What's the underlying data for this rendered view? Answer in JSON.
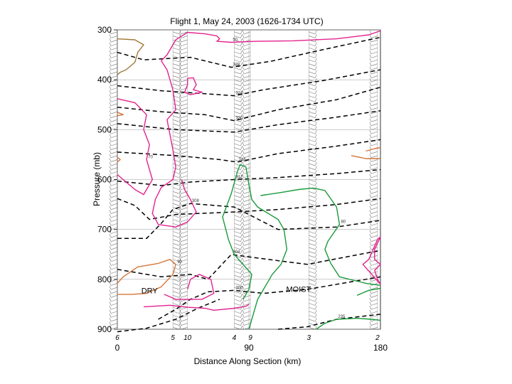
{
  "chart_data": {
    "type": "line",
    "title": "Flight 1, May 24, 2003 (1626-1734 UTC)",
    "xlabel": "Distance Along Section (km)",
    "ylabel": "Pressure (mb)",
    "xlim": [
      0,
      180
    ],
    "ylim": [
      300,
      900
    ],
    "x_ticks": [
      "0",
      "90",
      "180"
    ],
    "y_ticks": [
      "300",
      "400",
      "500",
      "600",
      "700",
      "800",
      "900"
    ],
    "sounding_numbers": [
      {
        "label": "6",
        "x": 0
      },
      {
        "label": "5",
        "x": 38
      },
      {
        "label": "10",
        "x": 48
      },
      {
        "label": "4",
        "x": 80
      },
      {
        "label": "9",
        "x": 91
      },
      {
        "label": "3",
        "x": 131
      },
      {
        "label": "2",
        "x": 178
      }
    ],
    "annotations": [
      {
        "text": "DRY",
        "x": 22,
        "y": 828
      },
      {
        "text": "MOIST",
        "x": 124,
        "y": 825
      }
    ],
    "colors": {
      "theta": "#000000",
      "rh_high": "#e2238e",
      "rh_mid": "#1a9a3a",
      "rh_low": "#d5763a",
      "rh_low_alt": "#a07838",
      "grid": "#999999",
      "barb": "#777777"
    },
    "series": [
      {
        "kind": "theta",
        "label": "328",
        "points": [
          [
            0,
            345
          ],
          [
            18,
            360
          ],
          [
            50,
            355
          ],
          [
            78,
            375
          ],
          [
            105,
            363
          ],
          [
            140,
            340
          ],
          [
            180,
            315
          ]
        ]
      },
      {
        "kind": "theta",
        "label": "324",
        "points": [
          [
            0,
            412
          ],
          [
            30,
            422
          ],
          [
            60,
            428
          ],
          [
            80,
            432
          ],
          [
            100,
            420
          ],
          [
            140,
            402
          ],
          [
            180,
            380
          ]
        ]
      },
      {
        "kind": "theta",
        "label": "320",
        "points": [
          [
            0,
            455
          ],
          [
            30,
            464
          ],
          [
            60,
            470
          ],
          [
            80,
            482
          ],
          [
            110,
            460
          ],
          [
            150,
            440
          ],
          [
            180,
            415
          ]
        ]
      },
      {
        "kind": "theta",
        "label": "",
        "points": [
          [
            0,
            488
          ],
          [
            40,
            500
          ],
          [
            80,
            505
          ],
          [
            110,
            490
          ],
          [
            150,
            475
          ],
          [
            180,
            462
          ]
        ]
      },
      {
        "kind": "theta",
        "label": "316",
        "points": [
          [
            0,
            545
          ],
          [
            40,
            552
          ],
          [
            70,
            560
          ],
          [
            82,
            565
          ],
          [
            110,
            548
          ],
          [
            150,
            533
          ],
          [
            180,
            520
          ]
        ]
      },
      {
        "kind": "theta",
        "label": "312",
        "points": [
          [
            0,
            603
          ],
          [
            30,
            612
          ],
          [
            50,
            605
          ],
          [
            80,
            600
          ],
          [
            110,
            596
          ],
          [
            150,
            588
          ],
          [
            180,
            580
          ]
        ]
      },
      {
        "kind": "theta",
        "label": "",
        "points": [
          [
            0,
            638
          ],
          [
            12,
            652
          ],
          [
            22,
            680
          ],
          [
            40,
            670
          ],
          [
            80,
            665
          ],
          [
            110,
            660
          ],
          [
            150,
            650
          ],
          [
            180,
            638
          ]
        ]
      },
      {
        "kind": "theta",
        "label": "308",
        "points": [
          [
            0,
            718
          ],
          [
            20,
            718
          ],
          [
            30,
            688
          ],
          [
            38,
            660
          ],
          [
            50,
            648
          ],
          [
            80,
            655
          ],
          [
            110,
            700
          ],
          [
            150,
            695
          ],
          [
            180,
            682
          ]
        ]
      },
      {
        "kind": "theta",
        "label": "304",
        "points": [
          [
            0,
            780
          ],
          [
            30,
            795
          ],
          [
            50,
            790
          ],
          [
            62,
            800
          ],
          [
            78,
            750
          ],
          [
            90,
            755
          ],
          [
            130,
            770
          ],
          [
            180,
            742
          ]
        ]
      },
      {
        "kind": "theta",
        "label": "300",
        "points": [
          [
            28,
            880
          ],
          [
            40,
            860
          ],
          [
            50,
            840
          ],
          [
            62,
            825
          ],
          [
            80,
            822
          ],
          [
            100,
            828
          ],
          [
            130,
            820
          ],
          [
            160,
            805
          ],
          [
            180,
            795
          ]
        ]
      },
      {
        "kind": "theta",
        "label": "",
        "points": [
          [
            0,
            905
          ],
          [
            20,
            898
          ],
          [
            40,
            880
          ],
          [
            55,
            858
          ],
          [
            70,
            840
          ]
        ]
      },
      {
        "kind": "theta",
        "label": "235",
        "points": [
          [
            110,
            900
          ],
          [
            130,
            895
          ],
          [
            150,
            880
          ],
          [
            180,
            870
          ]
        ]
      },
      {
        "kind": "rh_high",
        "label": "50",
        "points": [
          [
            48,
            305
          ],
          [
            60,
            308
          ],
          [
            68,
            312
          ],
          [
            70,
            318
          ],
          [
            68,
            323
          ],
          [
            78,
            325
          ],
          [
            95,
            323
          ],
          [
            120,
            322
          ],
          [
            150,
            318
          ],
          [
            172,
            310
          ],
          [
            180,
            302
          ]
        ]
      },
      {
        "kind": "rh_high",
        "label": "",
        "points": [
          [
            30,
            362
          ],
          [
            34,
            350
          ],
          [
            40,
            320
          ],
          [
            48,
            305
          ]
        ]
      },
      {
        "kind": "rh_high",
        "label": "",
        "points": [
          [
            30,
            362
          ],
          [
            34,
            380
          ],
          [
            38,
            420
          ],
          [
            40,
            460
          ],
          [
            34,
            480
          ],
          [
            36,
            510
          ],
          [
            38,
            540
          ],
          [
            40,
            575
          ],
          [
            38,
            600
          ],
          [
            30,
            616
          ],
          [
            26,
            640
          ],
          [
            24,
            668
          ],
          [
            28,
            690
          ],
          [
            40,
            695
          ],
          [
            48,
            685
          ],
          [
            54,
            665
          ],
          [
            50,
            640
          ],
          [
            46,
            620
          ],
          [
            44,
            600
          ]
        ]
      },
      {
        "kind": "rh_high",
        "label": "",
        "points": [
          [
            48,
            397
          ],
          [
            52,
            396
          ],
          [
            54,
            410
          ],
          [
            52,
            420
          ],
          [
            58,
            425
          ],
          [
            50,
            430
          ],
          [
            46,
            425
          ],
          [
            48,
            410
          ],
          [
            48,
            397
          ]
        ]
      },
      {
        "kind": "rh_high",
        "label": "70",
        "points": [
          [
            0,
            438
          ],
          [
            12,
            446
          ],
          [
            20,
            470
          ],
          [
            18,
            500
          ],
          [
            22,
            530
          ],
          [
            20,
            560
          ],
          [
            24,
            600
          ],
          [
            18,
            630
          ],
          [
            12,
            620
          ],
          [
            4,
            600
          ],
          [
            0,
            590
          ]
        ]
      },
      {
        "kind": "rh_high",
        "label": "",
        "points": [
          [
            18,
            855
          ],
          [
            36,
            852
          ],
          [
            48,
            856
          ],
          [
            60,
            858
          ],
          [
            66,
            862
          ],
          [
            80,
            858
          ],
          [
            88,
            854
          ],
          [
            90,
            850
          ]
        ]
      },
      {
        "kind": "rh_high",
        "label": "",
        "points": [
          [
            48,
            820
          ],
          [
            50,
            800
          ],
          [
            56,
            790
          ],
          [
            64,
            800
          ],
          [
            66,
            828
          ],
          [
            58,
            840
          ],
          [
            40,
            840
          ],
          [
            32,
            830
          ]
        ]
      },
      {
        "kind": "rh_high",
        "label": "",
        "points": [
          [
            172,
            760
          ],
          [
            178,
            720
          ],
          [
            180,
            715
          ],
          [
            176,
            740
          ],
          [
            176,
            760
          ],
          [
            180,
            770
          ],
          [
            176,
            782
          ],
          [
            178,
            800
          ],
          [
            180,
            810
          ],
          [
            174,
            790
          ],
          [
            168,
            770
          ],
          [
            172,
            760
          ]
        ]
      },
      {
        "kind": "rh_mid",
        "label": "",
        "points": [
          [
            86,
            840
          ],
          [
            90,
            820
          ],
          [
            92,
            790
          ],
          [
            80,
            750
          ],
          [
            76,
            720
          ],
          [
            72,
            675
          ],
          [
            78,
            628
          ],
          [
            82,
            585
          ],
          [
            84,
            570
          ],
          [
            88,
            575
          ],
          [
            90,
            610
          ],
          [
            92,
            640
          ],
          [
            96,
            655
          ],
          [
            110,
            680
          ],
          [
            114,
            700
          ],
          [
            116,
            740
          ],
          [
            112,
            770
          ],
          [
            106,
            790
          ],
          [
            102,
            810
          ],
          [
            100,
            820
          ],
          [
            96,
            840
          ],
          [
            94,
            860
          ],
          [
            90,
            900
          ]
        ]
      },
      {
        "kind": "rh_mid",
        "label": "80",
        "points": [
          [
            98,
            632
          ],
          [
            112,
            626
          ],
          [
            124,
            620
          ],
          [
            134,
            617
          ],
          [
            142,
            622
          ],
          [
            150,
            655
          ],
          [
            152,
            690
          ],
          [
            144,
            724
          ],
          [
            142,
            740
          ],
          [
            146,
            768
          ],
          [
            152,
            795
          ],
          [
            170,
            808
          ],
          [
            180,
            812
          ]
        ]
      },
      {
        "kind": "rh_mid",
        "label": "",
        "points": [
          [
            164,
            832
          ],
          [
            172,
            822
          ],
          [
            180,
            818
          ]
        ]
      },
      {
        "kind": "rh_mid",
        "label": "",
        "points": [
          [
            136,
            900
          ],
          [
            142,
            888
          ],
          [
            150,
            880
          ],
          [
            164,
            878
          ],
          [
            174,
            880
          ],
          [
            180,
            882
          ]
        ]
      },
      {
        "kind": "rh_low",
        "label": "90",
        "points": [
          [
            0,
            808
          ],
          [
            4,
            795
          ],
          [
            14,
            775
          ],
          [
            28,
            768
          ],
          [
            36,
            760
          ],
          [
            40,
            770
          ],
          [
            38,
            790
          ],
          [
            30,
            815
          ],
          [
            20,
            828
          ],
          [
            10,
            830
          ],
          [
            0,
            830
          ]
        ]
      },
      {
        "kind": "rh_low",
        "label": "",
        "points": [
          [
            170,
            543
          ],
          [
            176,
            538
          ],
          [
            180,
            536
          ]
        ]
      },
      {
        "kind": "rh_low",
        "label": "",
        "points": [
          [
            160,
            552
          ],
          [
            170,
            558
          ],
          [
            180,
            558
          ]
        ]
      },
      {
        "kind": "rh_low",
        "label": "",
        "points": [
          [
            0,
            465
          ],
          [
            4,
            470
          ],
          [
            0,
            472
          ]
        ]
      },
      {
        "kind": "rh_low",
        "label": "",
        "points": [
          [
            0,
            555
          ],
          [
            2,
            560
          ],
          [
            0,
            565
          ]
        ]
      },
      {
        "kind": "rh_low_alt",
        "label": "",
        "points": [
          [
            0,
            318
          ],
          [
            12,
            320
          ],
          [
            18,
            330
          ],
          [
            14,
            345
          ],
          [
            12,
            365
          ],
          [
            6,
            380
          ],
          [
            2,
            385
          ],
          [
            0,
            390
          ]
        ]
      }
    ]
  }
}
